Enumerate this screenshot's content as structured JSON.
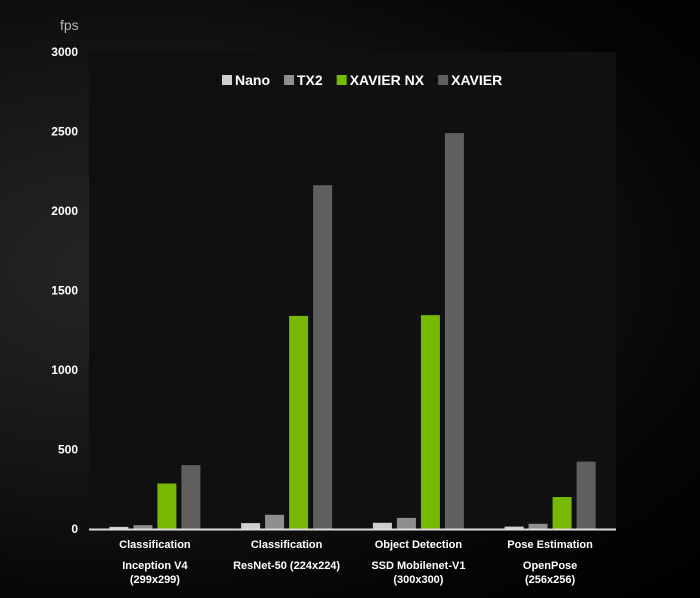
{
  "chart_data": {
    "type": "bar",
    "ylabel": "fps",
    "ylim": [
      0,
      3000
    ],
    "yticks": [
      0,
      500,
      1000,
      1500,
      2000,
      2500,
      3000
    ],
    "legend_position": "top-center",
    "grid": false,
    "categories": [
      [
        "Classification",
        "Inception V4",
        "(299x299)"
      ],
      [
        "Classification",
        "ResNet-50 (224x224)"
      ],
      [
        "Object Detection",
        "SSD Mobilenet-V1",
        "(300x300)"
      ],
      [
        "Pose Estimation",
        "OpenPose",
        "(256x256)"
      ]
    ],
    "series": [
      {
        "name": "Nano",
        "color": "#cfcfcf",
        "values": [
          13,
          37,
          39,
          15
        ]
      },
      {
        "name": "TX2",
        "color": "#8e8e8e",
        "values": [
          24,
          89,
          70,
          33
        ]
      },
      {
        "name": "XAVIER NX",
        "color": "#76b900",
        "values": [
          286,
          1340,
          1345,
          201
        ]
      },
      {
        "name": "XAVIER",
        "color": "#5f5f5f",
        "values": [
          402,
          2162,
          2490,
          424
        ]
      }
    ]
  }
}
